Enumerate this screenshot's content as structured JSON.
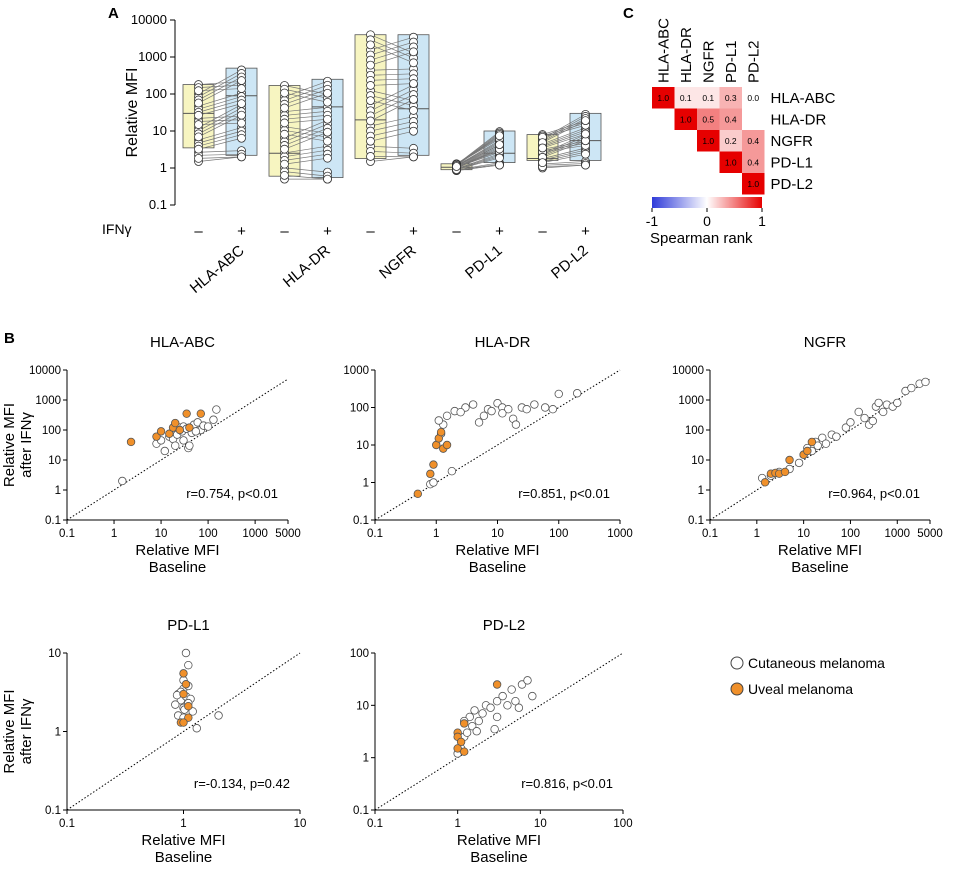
{
  "panel_labels": {
    "a": "A",
    "b": "B",
    "c": "C"
  },
  "chart_data": [
    {
      "id": "A",
      "type": "box",
      "ylabel": "Relative MFI",
      "yscale": "log",
      "ylim": [
        0.1,
        10000
      ],
      "yticks": [
        "0.1",
        "1",
        "10",
        "100",
        "1000",
        "10000"
      ],
      "treatment_label": "IFNγ",
      "treatment_symbols": {
        "without": "–",
        "with": "+"
      },
      "colors": {
        "without": "#f7f5c1",
        "with": "#cde6f5",
        "line": "#6e6e6e",
        "point": "#ffffff"
      },
      "groups": [
        {
          "marker": "HLA-ABC",
          "without": {
            "min": 1.5,
            "q1": 3.5,
            "median": 30,
            "q3": 180
          },
          "with": {
            "min": 2,
            "q1": 2.2,
            "median": 90,
            "q3": 500
          }
        },
        {
          "marker": "HLA-DR",
          "without": {
            "min": 0.5,
            "q1": 0.6,
            "median": 2.5,
            "q3": 170
          },
          "with": {
            "min": 0.5,
            "q1": 0.55,
            "median": 45,
            "q3": 250
          }
        },
        {
          "marker": "NGFR",
          "without": {
            "min": 1.5,
            "q1": 1.8,
            "median": 20,
            "q3": 4000
          },
          "with": {
            "min": 2,
            "q1": 2.2,
            "median": 40,
            "q3": 4000
          }
        },
        {
          "marker": "PD-L1",
          "without": {
            "min": 0.85,
            "q1": 0.9,
            "median": 1.05,
            "q3": 1.3
          },
          "with": {
            "min": 1.2,
            "q1": 1.4,
            "median": 2.5,
            "q3": 10
          }
        },
        {
          "marker": "PD-L2",
          "without": {
            "min": 1,
            "q1": 1.6,
            "median": 1.8,
            "q3": 8
          },
          "with": {
            "min": 1.2,
            "q1": 1.6,
            "median": 5.5,
            "q3": 30
          }
        }
      ]
    },
    {
      "id": "B-HLA-ABC",
      "type": "scatter",
      "title": "HLA-ABC",
      "xscale": "log",
      "yscale": "log",
      "xlim": [
        0.1,
        5000
      ],
      "ylim": [
        0.1,
        10000
      ],
      "xticks": [
        "0.1",
        "1",
        "10",
        "100",
        "1000",
        "5000"
      ],
      "yticks": [
        "0.1",
        "1",
        "10",
        "100",
        "1000",
        "10000"
      ],
      "xlabel": [
        "Relative MFI",
        "Baseline"
      ],
      "ylabel": [
        "Relative MFI",
        "after IFNγ"
      ],
      "annotation": "r=0.754, p<0.01",
      "series": [
        {
          "name": "Cutaneous melanoma",
          "points": [
            [
              1.5,
              2
            ],
            [
              8,
              35
            ],
            [
              10,
              45
            ],
            [
              12,
              20
            ],
            [
              15,
              60
            ],
            [
              18,
              50
            ],
            [
              20,
              100
            ],
            [
              22,
              70
            ],
            [
              25,
              120
            ],
            [
              28,
              90
            ],
            [
              30,
              130
            ],
            [
              35,
              110
            ],
            [
              38,
              25
            ],
            [
              40,
              30
            ],
            [
              45,
              80
            ],
            [
              50,
              150
            ],
            [
              60,
              180
            ],
            [
              70,
              100
            ],
            [
              80,
              140
            ],
            [
              100,
              130
            ],
            [
              130,
              220
            ],
            [
              150,
              480
            ],
            [
              20,
              30
            ],
            [
              30,
              45
            ],
            [
              55,
              90
            ]
          ]
        },
        {
          "name": "Uveal melanoma",
          "points": [
            [
              2.3,
              40
            ],
            [
              8,
              60
            ],
            [
              10,
              90
            ],
            [
              15,
              75
            ],
            [
              18,
              120
            ],
            [
              20,
              170
            ],
            [
              25,
              100
            ],
            [
              35,
              350
            ],
            [
              40,
              120
            ],
            [
              70,
              350
            ]
          ]
        }
      ]
    },
    {
      "id": "B-HLA-DR",
      "type": "scatter",
      "title": "HLA-DR",
      "xscale": "log",
      "yscale": "log",
      "xlim": [
        0.1,
        1000
      ],
      "ylim": [
        0.1,
        1000
      ],
      "xticks": [
        "0.1",
        "1",
        "10",
        "100",
        "1000"
      ],
      "yticks": [
        "0.1",
        "1",
        "10",
        "100",
        "1000"
      ],
      "xlabel": [
        "Relative MFI",
        "Baseline"
      ],
      "ylabel": [],
      "annotation": "r=0.851, p<0.01",
      "series": [
        {
          "name": "Cutaneous melanoma",
          "points": [
            [
              0.8,
              0.9
            ],
            [
              0.9,
              1.0
            ],
            [
              1.2,
              20
            ],
            [
              1.3,
              35
            ],
            [
              1.5,
              60
            ],
            [
              1.8,
              2
            ],
            [
              2,
              80
            ],
            [
              3,
              100
            ],
            [
              4,
              120
            ],
            [
              5,
              40
            ],
            [
              6,
              60
            ],
            [
              7,
              90
            ],
            [
              8,
              80
            ],
            [
              10,
              130
            ],
            [
              12,
              100
            ],
            [
              15,
              90
            ],
            [
              18,
              50
            ],
            [
              20,
              35
            ],
            [
              25,
              100
            ],
            [
              30,
              90
            ],
            [
              40,
              120
            ],
            [
              60,
              100
            ],
            [
              80,
              90
            ],
            [
              100,
              230
            ],
            [
              200,
              240
            ],
            [
              1.1,
              45
            ],
            [
              2.5,
              75
            ],
            [
              12,
              70
            ]
          ]
        },
        {
          "name": "Uveal melanoma",
          "points": [
            [
              0.5,
              0.5
            ],
            [
              0.8,
              1.7
            ],
            [
              0.9,
              3
            ],
            [
              1.0,
              10
            ],
            [
              1.1,
              15
            ],
            [
              1.2,
              22
            ],
            [
              1.3,
              8
            ],
            [
              1.5,
              10
            ]
          ]
        }
      ]
    },
    {
      "id": "B-NGFR",
      "type": "scatter",
      "title": "NGFR",
      "xscale": "log",
      "yscale": "log",
      "xlim": [
        0.1,
        5000
      ],
      "ylim": [
        0.1,
        10000
      ],
      "xticks": [
        "0.1",
        "1",
        "10",
        "100",
        "1000",
        "5000"
      ],
      "yticks": [
        "0.1",
        "1",
        "10",
        "100",
        "1000",
        "10000"
      ],
      "xlabel": [
        "Relative MFI",
        "Baseline"
      ],
      "ylabel": [],
      "annotation": "r=0.964, p<0.01",
      "series": [
        {
          "name": "Cutaneous melanoma",
          "points": [
            [
              1.3,
              2.5
            ],
            [
              2,
              3
            ],
            [
              3,
              4
            ],
            [
              5,
              5
            ],
            [
              8,
              8
            ],
            [
              10,
              15
            ],
            [
              12,
              25
            ],
            [
              15,
              20
            ],
            [
              18,
              40
            ],
            [
              20,
              30
            ],
            [
              25,
              55
            ],
            [
              30,
              35
            ],
            [
              40,
              70
            ],
            [
              50,
              60
            ],
            [
              80,
              120
            ],
            [
              100,
              180
            ],
            [
              150,
              400
            ],
            [
              200,
              250
            ],
            [
              250,
              150
            ],
            [
              300,
              200
            ],
            [
              350,
              600
            ],
            [
              400,
              800
            ],
            [
              500,
              400
            ],
            [
              600,
              700
            ],
            [
              800,
              600
            ],
            [
              1000,
              800
            ],
            [
              1500,
              2000
            ],
            [
              2000,
              2500
            ],
            [
              3000,
              3500
            ],
            [
              4000,
              4000
            ]
          ]
        },
        {
          "name": "Uveal melanoma",
          "points": [
            [
              1.5,
              1.8
            ],
            [
              2,
              3.5
            ],
            [
              2.5,
              3.7
            ],
            [
              3,
              3.5
            ],
            [
              4,
              4
            ],
            [
              5,
              10
            ],
            [
              10,
              15
            ],
            [
              12,
              20
            ],
            [
              15,
              40
            ]
          ]
        }
      ]
    },
    {
      "id": "B-PD-L1",
      "type": "scatter",
      "title": "PD-L1",
      "xscale": "log",
      "yscale": "log",
      "xlim": [
        0.1,
        10
      ],
      "ylim": [
        0.1,
        10
      ],
      "xticks": [
        "0.1",
        "1",
        "10"
      ],
      "yticks": [
        "0.1",
        "1",
        "10"
      ],
      "xlabel": [
        "Relative MFI",
        "Baseline"
      ],
      "ylabel": [
        "Relative MFI",
        "after IFNγ"
      ],
      "annotation": "r=-0.134, p=0.42",
      "series": [
        {
          "name": "Cutaneous melanoma",
          "points": [
            [
              0.9,
              3
            ],
            [
              0.95,
              2.5
            ],
            [
              1.0,
              3.5
            ],
            [
              1.05,
              2.8
            ],
            [
              1.1,
              3.8
            ],
            [
              0.85,
              2.2
            ],
            [
              1.0,
              2.0
            ],
            [
              1.15,
              2.6
            ],
            [
              1.2,
              1.8
            ],
            [
              0.9,
              1.6
            ],
            [
              1.0,
              4.5
            ],
            [
              1.05,
              10
            ],
            [
              1.1,
              7
            ],
            [
              1.3,
              1.1
            ],
            [
              2.0,
              1.6
            ],
            [
              1.0,
              1.5
            ],
            [
              0.95,
              3.2
            ],
            [
              1.1,
              2.3
            ],
            [
              0.88,
              2.9
            ],
            [
              1.02,
              1.9
            ]
          ]
        },
        {
          "name": "Uveal melanoma",
          "points": [
            [
              1.0,
              5.5
            ],
            [
              1.05,
              4
            ],
            [
              1.0,
              3
            ],
            [
              0.95,
              1.3
            ],
            [
              1.1,
              2.1
            ],
            [
              1.1,
              1.5
            ],
            [
              1.0,
              1.3
            ]
          ]
        }
      ]
    },
    {
      "id": "B-PD-L2",
      "type": "scatter",
      "title": "PD-L2",
      "xscale": "log",
      "yscale": "log",
      "xlim": [
        0.1,
        100
      ],
      "ylim": [
        0.1,
        100
      ],
      "xticks": [
        "0.1",
        "1",
        "10",
        "100"
      ],
      "yticks": [
        "0.1",
        "1",
        "10",
        "100"
      ],
      "xlabel": [
        "Relative MFI",
        "Baseline"
      ],
      "ylabel": [],
      "annotation": "r=0.816, p<0.01",
      "series": [
        {
          "name": "Cutaneous melanoma",
          "points": [
            [
              1.0,
              1.2
            ],
            [
              1.1,
              1.5
            ],
            [
              1.2,
              2.5
            ],
            [
              1.3,
              3
            ],
            [
              1.5,
              4
            ],
            [
              1.4,
              6
            ],
            [
              1.6,
              8
            ],
            [
              1.8,
              5
            ],
            [
              2,
              7
            ],
            [
              2.2,
              10
            ],
            [
              2.5,
              9
            ],
            [
              3,
              12
            ],
            [
              3.5,
              15
            ],
            [
              4,
              10
            ],
            [
              4.5,
              20
            ],
            [
              5,
              12
            ],
            [
              6,
              25
            ],
            [
              7,
              30
            ],
            [
              8,
              15
            ],
            [
              3,
              6
            ],
            [
              2.8,
              3.5
            ],
            [
              1.2,
              5
            ],
            [
              1.7,
              3.2
            ],
            [
              5.5,
              9
            ]
          ]
        },
        {
          "name": "Uveal melanoma",
          "points": [
            [
              1.0,
              3
            ],
            [
              1.0,
              2.5
            ],
            [
              1.1,
              2
            ],
            [
              1.0,
              1.5
            ],
            [
              1.2,
              1.3
            ],
            [
              1.2,
              4.5
            ],
            [
              3,
              25
            ]
          ]
        }
      ]
    },
    {
      "id": "C",
      "type": "heatmap",
      "labels": [
        "HLA-ABC",
        "HLA-DR",
        "NGFR",
        "PD-L1",
        "PD-L2"
      ],
      "matrix": [
        [
          1.0,
          0.1,
          0.1,
          0.3,
          0.0
        ],
        [
          null,
          1.0,
          0.5,
          0.4,
          null
        ],
        [
          null,
          null,
          1.0,
          0.2,
          0.4
        ],
        [
          null,
          null,
          null,
          1.0,
          0.4
        ],
        [
          null,
          null,
          null,
          null,
          1.0
        ]
      ],
      "cell_text": [
        [
          "1.0",
          "0.1",
          "0.1",
          "0.3",
          "0.0"
        ],
        [
          "",
          "1.0",
          "0.5",
          "0.4",
          ""
        ],
        [
          "",
          "",
          "1.0",
          "0.2",
          "0.4"
        ],
        [
          "",
          "",
          "",
          "1.0",
          "0.4"
        ],
        [
          "",
          "",
          "",
          "",
          "1.0"
        ]
      ],
      "colorbar": {
        "min": -1,
        "max": 1,
        "ticks": [
          "-1",
          "0",
          "1"
        ],
        "label": "Spearman rank",
        "colors": [
          "#2f3bd9",
          "#ffffff",
          "#e60000"
        ]
      }
    }
  ],
  "legend": [
    {
      "label": "Cutaneous melanoma",
      "fill": "#ffffff"
    },
    {
      "label": "Uveal melanoma",
      "fill": "#f0902a"
    }
  ]
}
